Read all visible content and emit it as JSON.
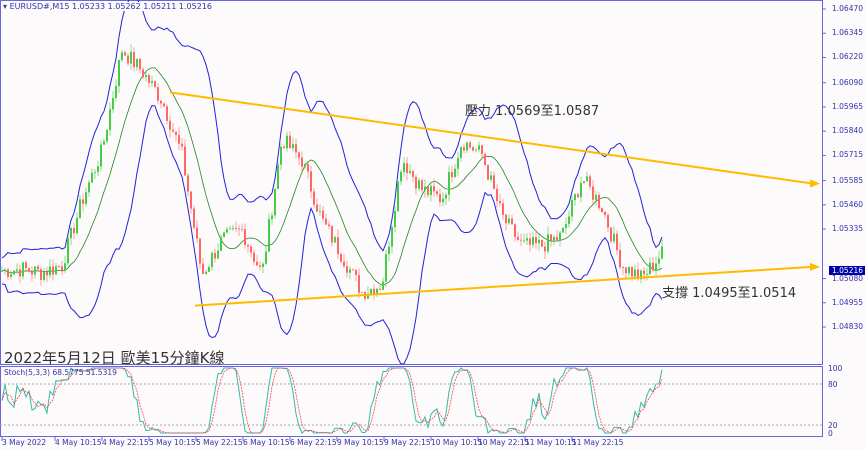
{
  "header": {
    "symbol": "EURUSD#,M15",
    "ohlc": "1.05233 1.05262 1.05211 1.05216"
  },
  "title": "2022年5月12日 歐美15分鐘K線",
  "annotations": {
    "resistance": "壓力 1.0569至1.0587",
    "support": "支撐 1.0495至1.0514"
  },
  "indicator": {
    "label": "Stoch(5,3,3) 68.5775 51.5319",
    "levels": [
      "100",
      "80",
      "20",
      "0"
    ]
  },
  "price_axis": [
    "1.06470",
    "1.06345",
    "1.06220",
    "1.06090",
    "1.05965",
    "1.05840",
    "1.05715",
    "1.05585",
    "1.05460",
    "1.05335",
    "1.05080",
    "1.04955",
    "1.04830"
  ],
  "current_price": "1.05216",
  "time_axis": [
    "3 May 2022",
    "4 May 10:15",
    "4 May 22:15",
    "5 May 10:15",
    "5 May 22:15",
    "6 May 10:15",
    "6 May 22:15",
    "9 May 10:15",
    "9 May 22:15",
    "10 May 10:15",
    "10 May 22:15",
    "11 May 10:15",
    "11 May 22:15"
  ],
  "colors": {
    "bull": "#44cc44",
    "bear": "#ff6666",
    "bands": "#2222dd",
    "trendline": "#ffbb00",
    "stoch_main": "#33bbaa",
    "stoch_signal": "#ff4444"
  },
  "chart_data": {
    "type": "candlestick",
    "symbol": "EURUSD",
    "timeframe": "M15",
    "approx_close_path": [
      1.0512,
      1.0513,
      1.0511,
      1.0515,
      1.0548,
      1.0574,
      1.0626,
      1.0615,
      1.06,
      1.0572,
      1.051,
      1.0528,
      1.0533,
      1.051,
      1.058,
      1.0569,
      1.0538,
      1.052,
      1.0501,
      1.0505,
      1.057,
      1.0554,
      1.0549,
      1.0579,
      1.0572,
      1.054,
      1.0525,
      1.0525,
      1.053,
      1.056,
      1.0545,
      1.0515,
      1.0508,
      1.0521
    ],
    "resistance_line": [
      1.0604,
      1.0557
    ],
    "support_line": [
      1.0494,
      1.0514
    ],
    "ylim": [
      1.048,
      1.065
    ]
  }
}
